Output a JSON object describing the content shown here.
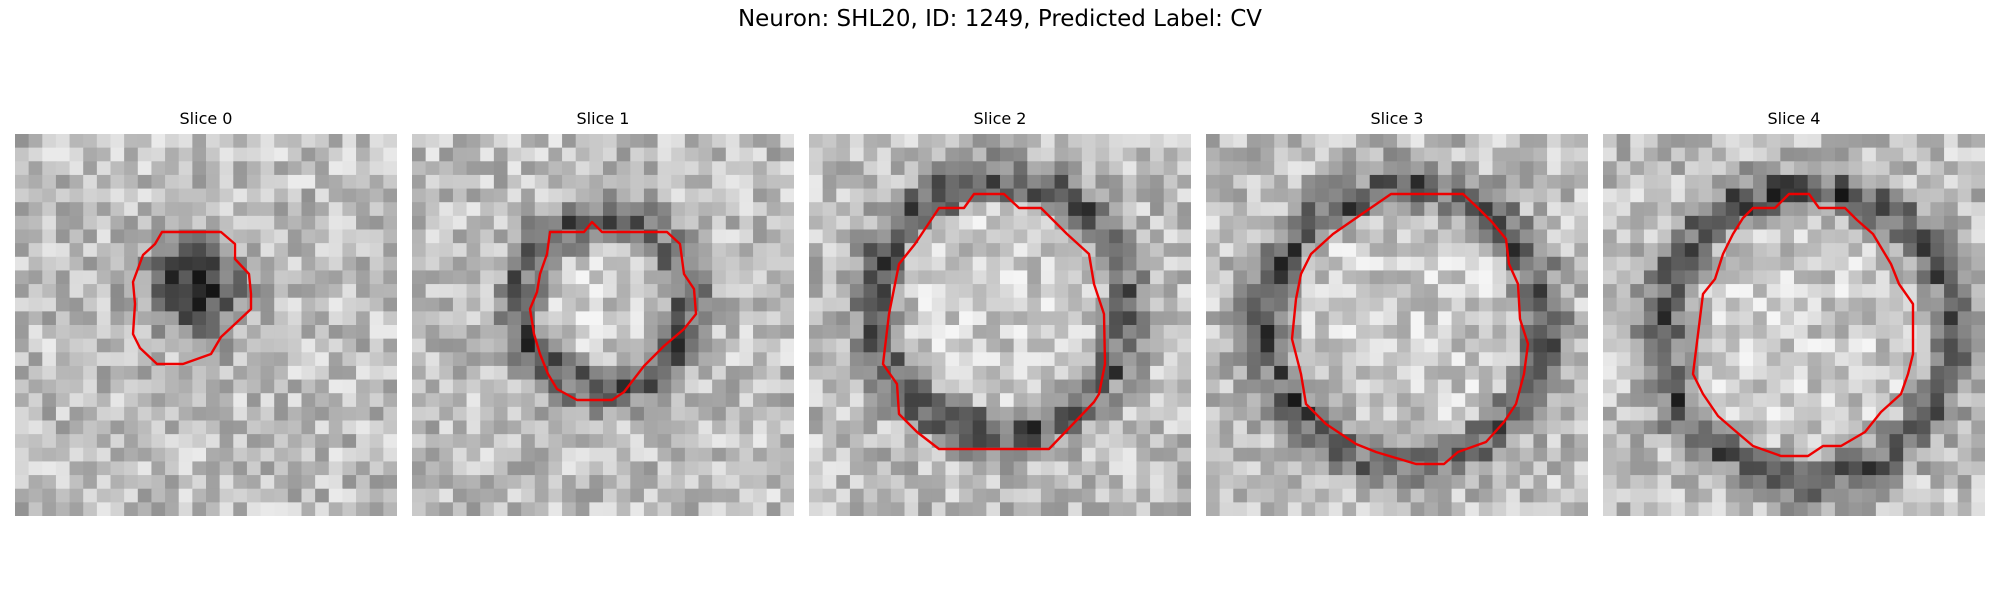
{
  "figure": {
    "title": "Neuron: SHL20, ID: 1249, Predicted Label: CV",
    "contour_color": "#ee0000"
  },
  "panels": [
    {
      "title": "Slice 0"
    },
    {
      "title": "Slice 1"
    },
    {
      "title": "Slice 2"
    },
    {
      "title": "Slice 3"
    },
    {
      "title": "Slice 4"
    }
  ]
}
